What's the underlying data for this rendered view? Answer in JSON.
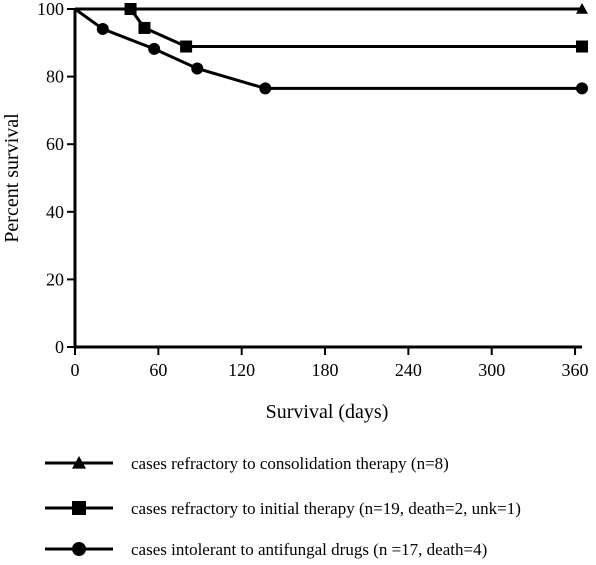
{
  "chart_data": {
    "type": "line",
    "title": "",
    "xlabel": "Survival (days)",
    "ylabel": "Percent survival",
    "xlim": [
      0,
      365
    ],
    "ylim": [
      0,
      100
    ],
    "x_ticks": [
      0,
      60,
      120,
      180,
      240,
      300,
      360
    ],
    "y_ticks": [
      0,
      20,
      40,
      60,
      80,
      100
    ],
    "grid": false,
    "legend_position": "bottom",
    "series": [
      {
        "name": "cases refractory to consolidation therapy (n=8)",
        "marker": "triangle",
        "x": [
          0,
          365
        ],
        "y": [
          100,
          100
        ],
        "markers_x": [
          365
        ],
        "markers_y": [
          100
        ]
      },
      {
        "name": "cases refractory to initial therapy (n=19, death=2, unk=1)",
        "marker": "square",
        "x": [
          0,
          40,
          40,
          50,
          50,
          80,
          80,
          365
        ],
        "y": [
          100,
          100,
          100,
          94.4,
          94.4,
          88.9,
          88.9,
          88.9
        ],
        "markers_x": [
          40,
          50,
          80,
          365
        ],
        "markers_y": [
          100,
          94.4,
          88.9,
          88.9
        ]
      },
      {
        "name": "cases intolerant to antifungal drugs (n =17, death=4)",
        "marker": "circle",
        "x": [
          0,
          20,
          57,
          88,
          137,
          365
        ],
        "y": [
          100,
          94.1,
          88.2,
          82.4,
          76.5,
          76.5
        ],
        "markers_x": [
          20,
          57,
          88,
          137,
          365
        ],
        "markers_y": [
          94.1,
          88.2,
          82.4,
          76.5,
          76.5
        ]
      }
    ]
  }
}
